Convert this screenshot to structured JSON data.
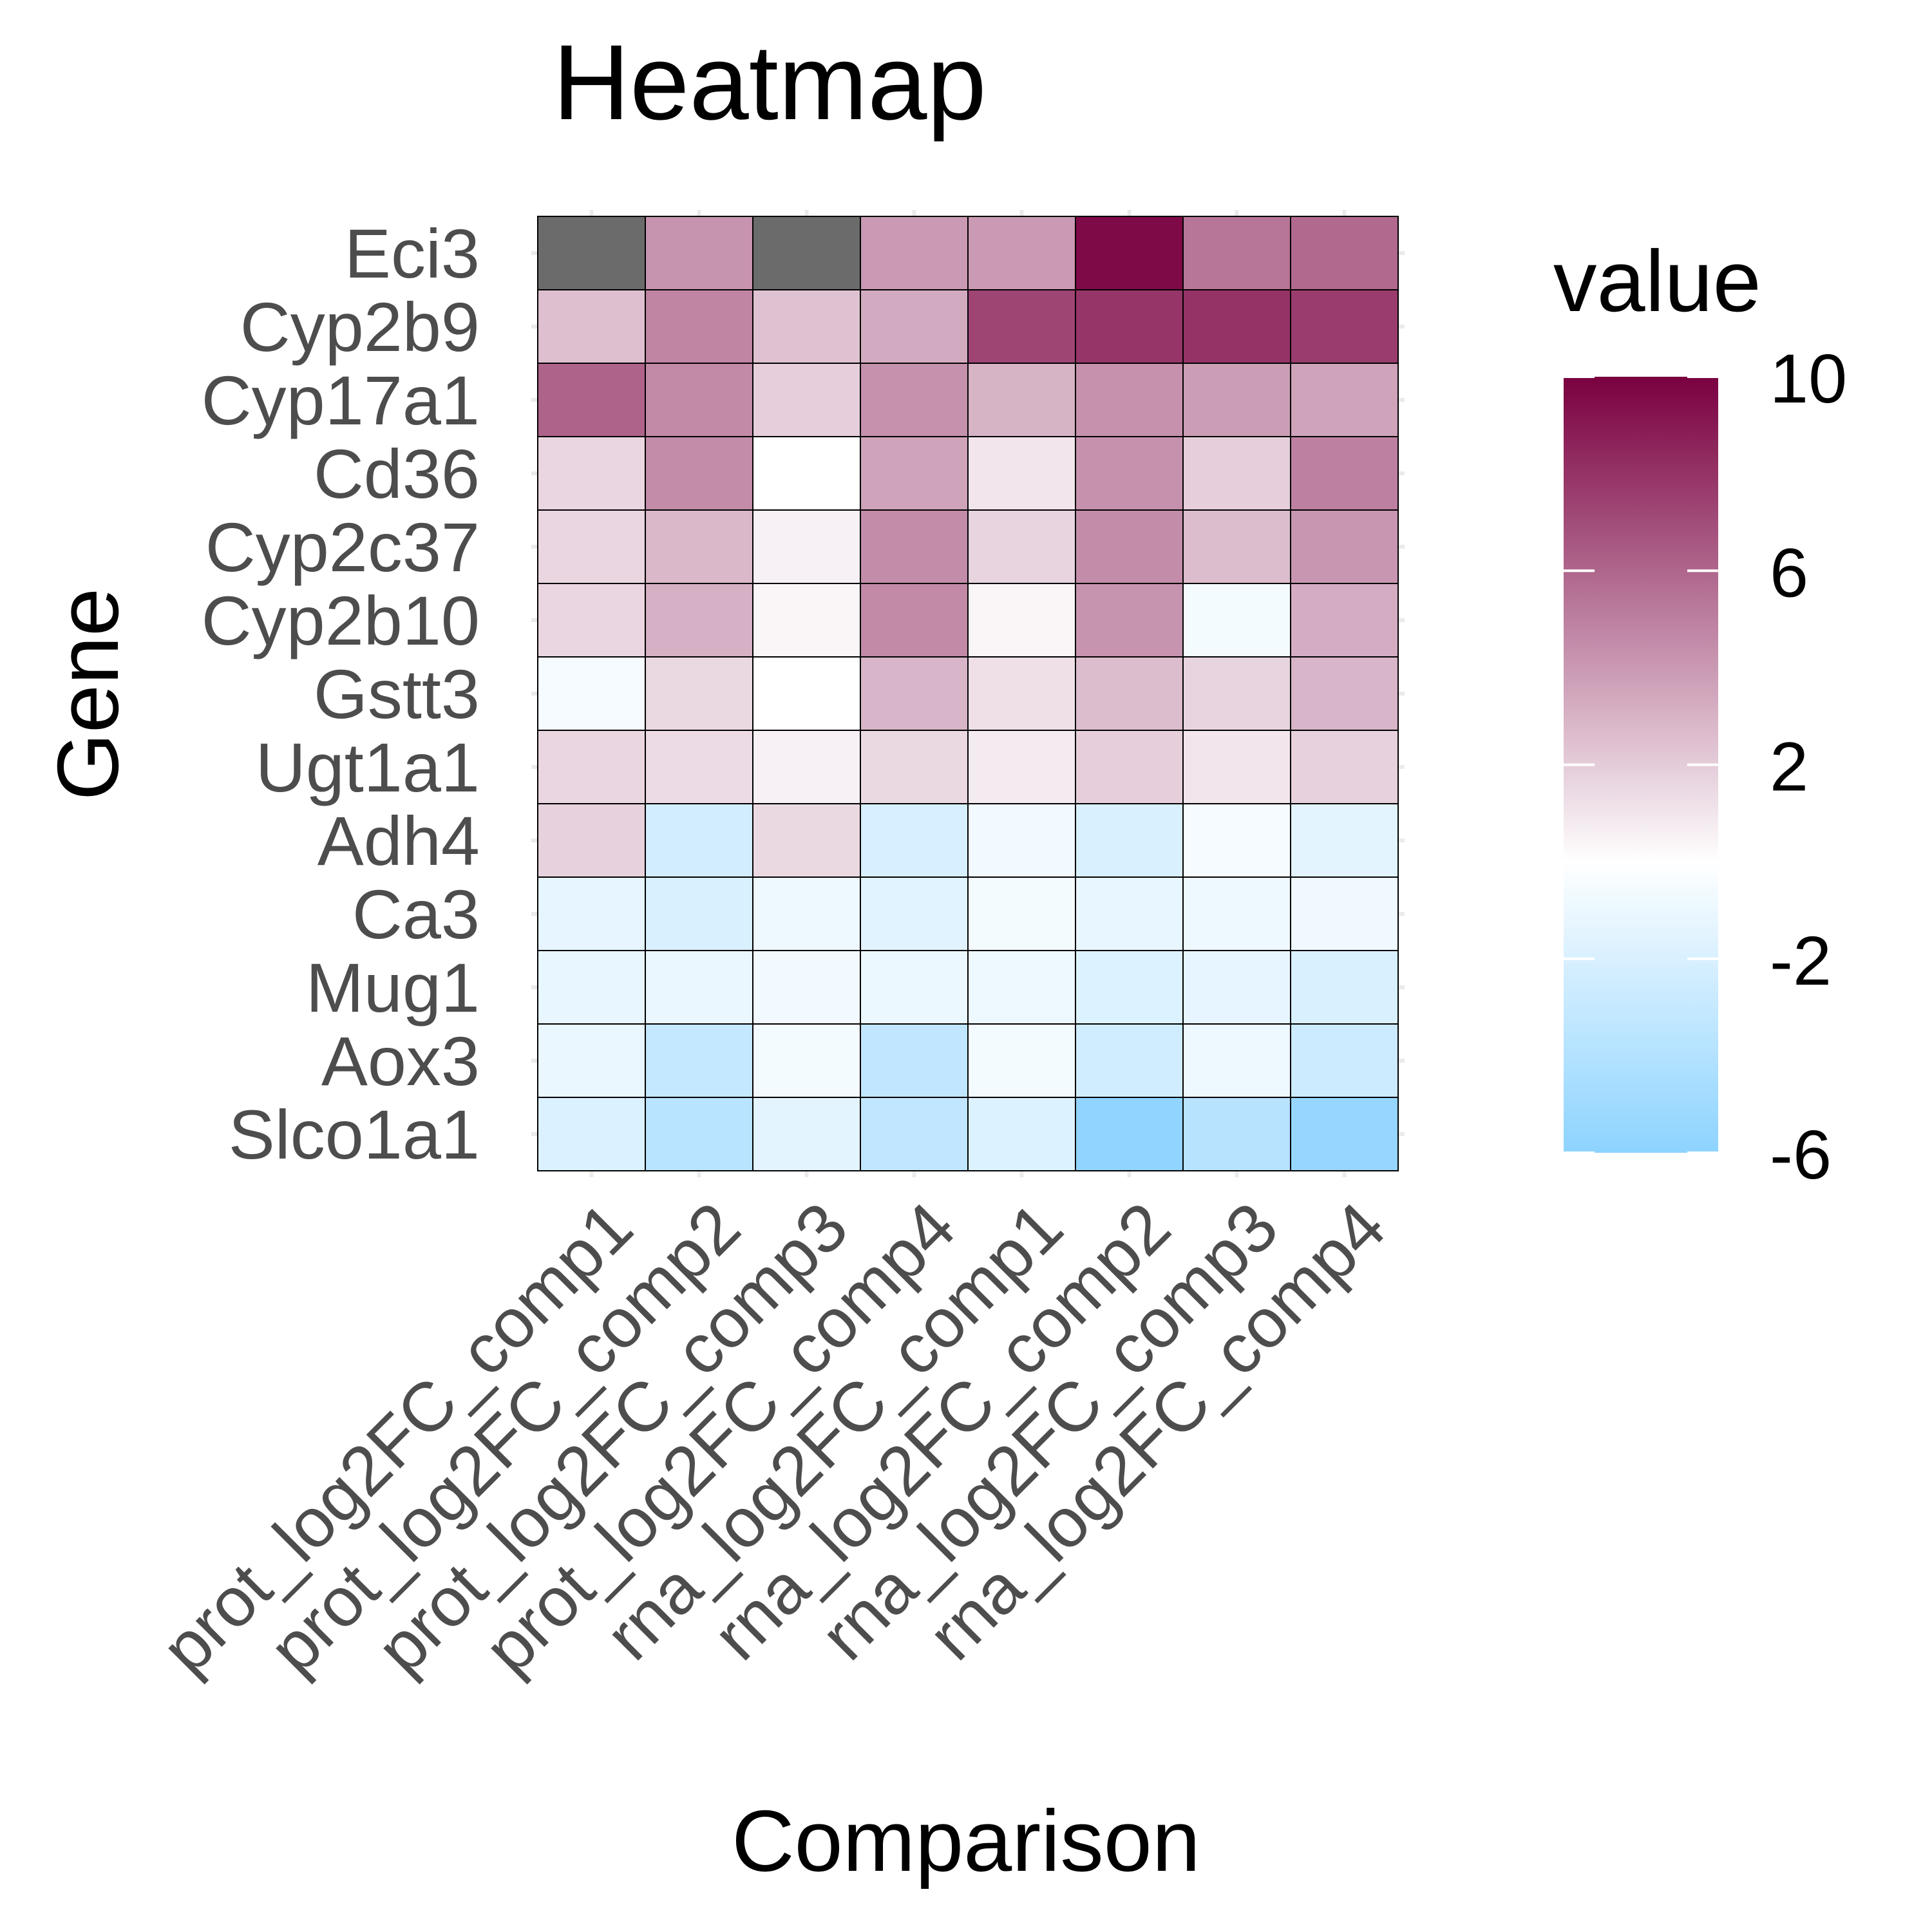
{
  "chart_data": {
    "type": "heatmap",
    "title": "Heatmap",
    "xlabel": "Comparison",
    "ylabel": "Gene",
    "x_categories": [
      "prot_log2FC_comp1",
      "prot_log2FC_comp2",
      "prot_log2FC_comp3",
      "prot_log2FC_comp4",
      "rna_log2FC_comp1",
      "rna_log2FC_comp2",
      "rna_log2FC_comp3",
      "rna_log2FC_comp4"
    ],
    "y_categories": [
      "Eci3",
      "Cyp2b9",
      "Cyp17a1",
      "Cd36",
      "Cyp2c37",
      "Cyp2b10",
      "Gstt3",
      "Ugt1a1",
      "Adh4",
      "Ca3",
      "Mug1",
      "Aox3",
      "Slco1a1"
    ],
    "values": [
      [
        null,
        4.2,
        null,
        4.0,
        4.0,
        9.6,
        5.4,
        5.9
      ],
      [
        2.5,
        4.8,
        2.4,
        3.3,
        7.3,
        7.9,
        8.0,
        7.6
      ],
      [
        6.1,
        4.6,
        1.9,
        4.3,
        3.0,
        4.3,
        3.8,
        3.6
      ],
      [
        1.6,
        4.5,
        0.0,
        3.6,
        1.0,
        4.3,
        1.9,
        5.0
      ],
      [
        1.6,
        2.8,
        0.6,
        4.5,
        1.7,
        4.5,
        2.6,
        4.1
      ],
      [
        1.6,
        3.1,
        0.4,
        4.6,
        0.4,
        4.2,
        -0.6,
        3.2
      ],
      [
        -0.5,
        1.5,
        0.0,
        2.9,
        1.2,
        2.6,
        1.7,
        2.9
      ],
      [
        1.6,
        1.4,
        0.6,
        1.5,
        0.8,
        1.9,
        1.0,
        1.8
      ],
      [
        1.8,
        -2.4,
        1.5,
        -2.1,
        -0.7,
        -2.0,
        -0.5,
        -1.5
      ],
      [
        -1.3,
        -2.0,
        -0.9,
        -1.6,
        -0.6,
        -1.2,
        -0.9,
        -0.8
      ],
      [
        -1.2,
        -1.1,
        -0.7,
        -1.0,
        -0.9,
        -1.8,
        -1.3,
        -2.0
      ],
      [
        -1.1,
        -3.1,
        -0.6,
        -3.3,
        -0.6,
        -2.5,
        -0.9,
        -2.7
      ],
      [
        -1.9,
        -3.7,
        -1.5,
        -3.3,
        -1.8,
        -5.8,
        -3.8,
        -5.5
      ]
    ],
    "na_color": "#6b6b6b",
    "legend": {
      "title": "value",
      "placement": "right",
      "ticks": [
        10,
        6,
        2,
        -2,
        -6
      ],
      "range": [
        -6,
        10
      ]
    },
    "colors": {
      "low": "#8dd3ff",
      "mid": "#ffffff",
      "high": "#7a0040",
      "midpoint": 0
    },
    "grid": true
  }
}
